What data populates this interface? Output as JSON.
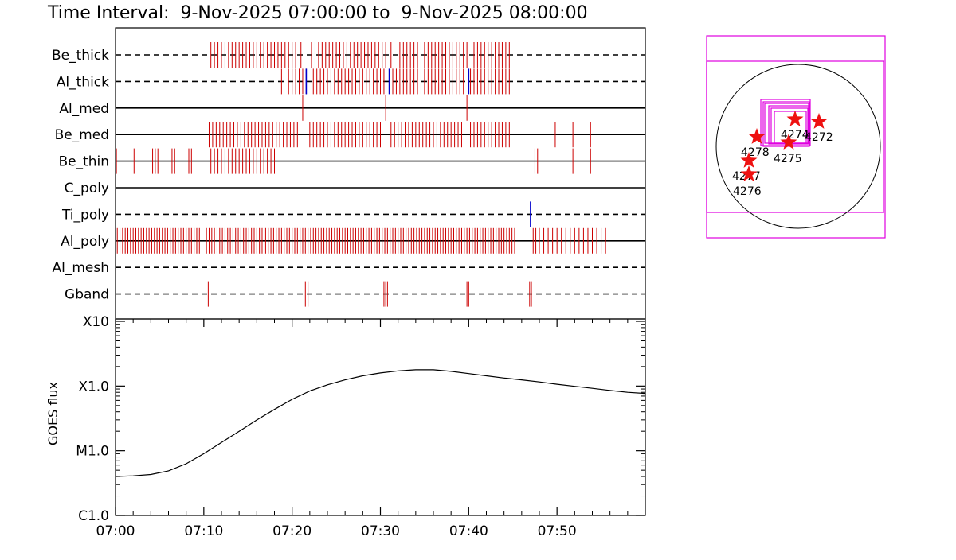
{
  "title": "Time Interval:  9-Nov-2025 07:00:00 to  9-Nov-2025 08:00:00",
  "chart_data": [
    {
      "type": "event-timeline",
      "x_range": [
        "07:00",
        "08:00"
      ],
      "channels": [
        {
          "name": "Be_thick",
          "baseline": "dashed",
          "events": [
            10.8,
            11.2,
            11.6,
            12.0,
            12.4,
            12.8,
            13.2,
            13.6,
            14.0,
            14.4,
            14.8,
            15.2,
            15.6,
            16.0,
            16.4,
            16.8,
            17.2,
            17.6,
            18.0,
            18.4,
            18.8,
            19.2,
            19.6,
            20.0,
            20.4,
            21.0,
            22.2,
            22.6,
            23.0,
            23.4,
            23.8,
            24.2,
            24.6,
            25.0,
            25.4,
            25.8,
            26.2,
            26.6,
            27.0,
            27.4,
            27.8,
            28.2,
            28.6,
            29.0,
            29.4,
            29.8,
            30.2,
            30.6,
            31.2,
            32.2,
            32.6,
            33.0,
            33.4,
            33.8,
            34.2,
            34.6,
            35.0,
            35.4,
            35.8,
            36.2,
            36.6,
            37.0,
            37.4,
            37.8,
            38.2,
            38.6,
            39.0,
            39.4,
            39.8,
            40.6,
            41.0,
            41.4,
            41.8,
            42.2,
            42.6,
            43.0,
            43.4,
            43.8,
            44.2,
            44.6
          ],
          "blue_events": []
        },
        {
          "name": "Al_thick",
          "baseline": "dashed",
          "events": [
            18.8,
            19.6,
            20.0,
            20.4,
            20.8,
            21.2,
            21.6,
            22.4,
            22.8,
            23.2,
            23.6,
            24.0,
            24.4,
            24.8,
            25.2,
            25.6,
            26.0,
            26.4,
            26.8,
            27.2,
            27.6,
            28.0,
            28.4,
            28.8,
            29.2,
            29.6,
            30.0,
            30.4,
            31.4,
            31.8,
            32.2,
            32.6,
            33.0,
            33.4,
            33.8,
            34.2,
            34.6,
            35.0,
            35.4,
            35.8,
            36.2,
            36.6,
            37.0,
            37.4,
            37.8,
            38.2,
            38.6,
            39.0,
            39.4,
            40.2,
            40.6,
            41.0,
            41.4,
            41.8,
            42.2,
            42.6,
            43.0,
            43.4,
            43.8,
            44.2,
            44.6
          ],
          "blue_events": [
            21.6,
            31.0,
            40.0
          ]
        },
        {
          "name": "Al_med",
          "baseline": "solid",
          "events": [
            21.2,
            30.6,
            39.8
          ],
          "blue_events": []
        },
        {
          "name": "Be_med",
          "baseline": "solid",
          "events": [
            10.6,
            11.0,
            11.4,
            11.8,
            12.2,
            12.6,
            13.0,
            13.4,
            13.8,
            14.2,
            14.6,
            15.0,
            15.4,
            15.8,
            16.2,
            16.6,
            17.0,
            17.4,
            17.8,
            18.2,
            18.6,
            19.0,
            19.4,
            19.8,
            20.2,
            20.6,
            22.0,
            22.4,
            22.8,
            23.2,
            23.6,
            24.0,
            24.4,
            24.8,
            25.2,
            25.6,
            26.0,
            26.4,
            26.8,
            27.2,
            27.6,
            28.0,
            28.4,
            28.8,
            29.2,
            29.6,
            30.0,
            31.2,
            31.6,
            32.0,
            32.4,
            32.8,
            33.2,
            33.6,
            34.0,
            34.4,
            34.8,
            35.2,
            35.6,
            36.0,
            36.4,
            36.8,
            37.2,
            37.6,
            38.0,
            38.4,
            38.8,
            39.2,
            40.2,
            40.6,
            41.0,
            41.4,
            41.8,
            42.2,
            42.6,
            43.0,
            43.4,
            43.8,
            44.2,
            44.6,
            49.8,
            51.8,
            53.8
          ],
          "blue_events": []
        },
        {
          "name": "Be_thin",
          "baseline": "solid",
          "events": [
            0.1,
            2.1,
            4.2,
            4.5,
            4.8,
            6.4,
            6.7,
            8.3,
            8.6,
            10.8,
            11.2,
            11.6,
            12.0,
            12.4,
            12.8,
            13.2,
            13.6,
            14.0,
            14.4,
            14.8,
            15.2,
            15.6,
            16.0,
            16.4,
            16.8,
            17.2,
            17.6,
            18.0,
            47.5,
            47.8,
            51.8,
            53.8
          ],
          "blue_events": []
        },
        {
          "name": "C_poly",
          "baseline": "solid",
          "events": [],
          "blue_events": []
        },
        {
          "name": "Ti_poly",
          "baseline": "dashed",
          "events": [],
          "blue_events": [
            47.0
          ]
        },
        {
          "name": "Al_poly",
          "baseline": "solid",
          "events": [
            0.2,
            0.5,
            0.8,
            1.1,
            1.4,
            1.7,
            2.0,
            2.3,
            2.6,
            2.9,
            3.2,
            3.5,
            3.8,
            4.1,
            4.4,
            4.7,
            5.0,
            5.3,
            5.6,
            5.9,
            6.2,
            6.5,
            6.8,
            7.1,
            7.4,
            7.7,
            8.0,
            8.3,
            8.6,
            8.9,
            9.2,
            9.5,
            10.3,
            10.6,
            10.9,
            11.2,
            11.5,
            11.8,
            12.1,
            12.4,
            12.7,
            13.0,
            13.3,
            13.6,
            13.9,
            14.2,
            14.5,
            14.8,
            15.1,
            15.4,
            15.7,
            16.0,
            16.3,
            16.6,
            17.0,
            17.3,
            17.6,
            17.9,
            18.2,
            18.5,
            18.8,
            19.1,
            19.4,
            19.7,
            20.0,
            20.3,
            20.6,
            20.9,
            21.2,
            21.5,
            21.8,
            22.1,
            22.4,
            22.7,
            23.0,
            23.3,
            23.6,
            23.9,
            24.2,
            24.5,
            24.8,
            25.1,
            25.4,
            25.7,
            26.0,
            26.3,
            26.6,
            26.9,
            27.2,
            27.5,
            27.8,
            28.1,
            28.4,
            28.7,
            29.0,
            29.3,
            29.6,
            29.9,
            30.2,
            30.5,
            30.8,
            31.1,
            31.4,
            31.7,
            32.0,
            32.3,
            32.6,
            32.9,
            33.2,
            33.5,
            33.8,
            34.1,
            34.4,
            34.7,
            35.0,
            35.3,
            35.6,
            35.9,
            36.2,
            36.5,
            36.8,
            37.1,
            37.4,
            37.7,
            38.0,
            38.3,
            38.6,
            38.9,
            39.2,
            39.5,
            39.8,
            40.1,
            40.4,
            40.7,
            41.0,
            41.3,
            41.6,
            41.9,
            42.2,
            42.5,
            42.8,
            43.1,
            43.4,
            43.7,
            44.0,
            44.3,
            44.6,
            44.9,
            45.2,
            47.3,
            47.6,
            48.0,
            48.5,
            49.0,
            49.5,
            50.0,
            50.5,
            51.0,
            51.5,
            52.0,
            52.5,
            53.0,
            53.5,
            54.0,
            54.5,
            55.0,
            55.5
          ],
          "blue_events": []
        },
        {
          "name": "Al_mesh",
          "baseline": "dashed",
          "events": [],
          "blue_events": []
        },
        {
          "name": "Gband",
          "baseline": "dashed",
          "events": [
            10.5,
            21.5,
            21.8,
            30.4,
            30.6,
            30.8,
            39.8,
            40.0,
            46.9,
            47.1
          ],
          "blue_events": []
        }
      ]
    },
    {
      "type": "line",
      "ylabel": "GOES flux",
      "y_scale": "log",
      "y_ticks": [
        {
          "label": "C1.0",
          "value": 1
        },
        {
          "label": "M1.0",
          "value": 10
        },
        {
          "label": "X1.0",
          "value": 100
        },
        {
          "label": "X10",
          "value": 1000
        }
      ],
      "x_ticks": [
        "07:00",
        "07:10",
        "07:20",
        "07:30",
        "07:40",
        "07:50"
      ],
      "x_range": [
        "07:00",
        "08:00"
      ],
      "series": [
        {
          "color": "#000000",
          "points": [
            [
              "07:00",
              4.0
            ],
            [
              "07:02",
              4.1
            ],
            [
              "07:04",
              4.3
            ],
            [
              "07:06",
              4.9
            ],
            [
              "07:08",
              6.3
            ],
            [
              "07:10",
              9.0
            ],
            [
              "07:12",
              13.4
            ],
            [
              "07:14",
              20.0
            ],
            [
              "07:16",
              29.9
            ],
            [
              "07:18",
              43.6
            ],
            [
              "07:20",
              62.4
            ],
            [
              "07:22",
              83.8
            ],
            [
              "07:24",
              104.4
            ],
            [
              "07:26",
              124.6
            ],
            [
              "07:28",
              143.7
            ],
            [
              "07:30",
              159.1
            ],
            [
              "07:32",
              171.2
            ],
            [
              "07:34",
              178.1
            ],
            [
              "07:36",
              178.1
            ],
            [
              "07:38",
              168.4
            ],
            [
              "07:40",
              155.8
            ],
            [
              "07:42",
              144.0
            ],
            [
              "07:44",
              133.0
            ],
            [
              "07:46",
              124.6
            ],
            [
              "07:48",
              115.5
            ],
            [
              "07:50",
              106.6
            ],
            [
              "07:52",
              98.9
            ],
            [
              "07:54",
              92.3
            ],
            [
              "07:56",
              85.4
            ],
            [
              "07:58",
              80.0
            ],
            [
              "08:00",
              77.0
            ]
          ]
        }
      ]
    }
  ],
  "locator": {
    "outline_color": "#e000e0",
    "star_color": "#ee1111",
    "active_regions": [
      {
        "id": "4274",
        "label": "4274"
      },
      {
        "id": "4272",
        "label": "4272"
      },
      {
        "id": "4278",
        "label": "4278"
      },
      {
        "id": "4275",
        "label": "4275"
      },
      {
        "id": "4277",
        "label": "4277"
      },
      {
        "id": "4276",
        "label": "4276"
      }
    ]
  },
  "colors": {
    "event": "#cc0000",
    "blue_event": "#0000cc",
    "axis": "#000000"
  }
}
